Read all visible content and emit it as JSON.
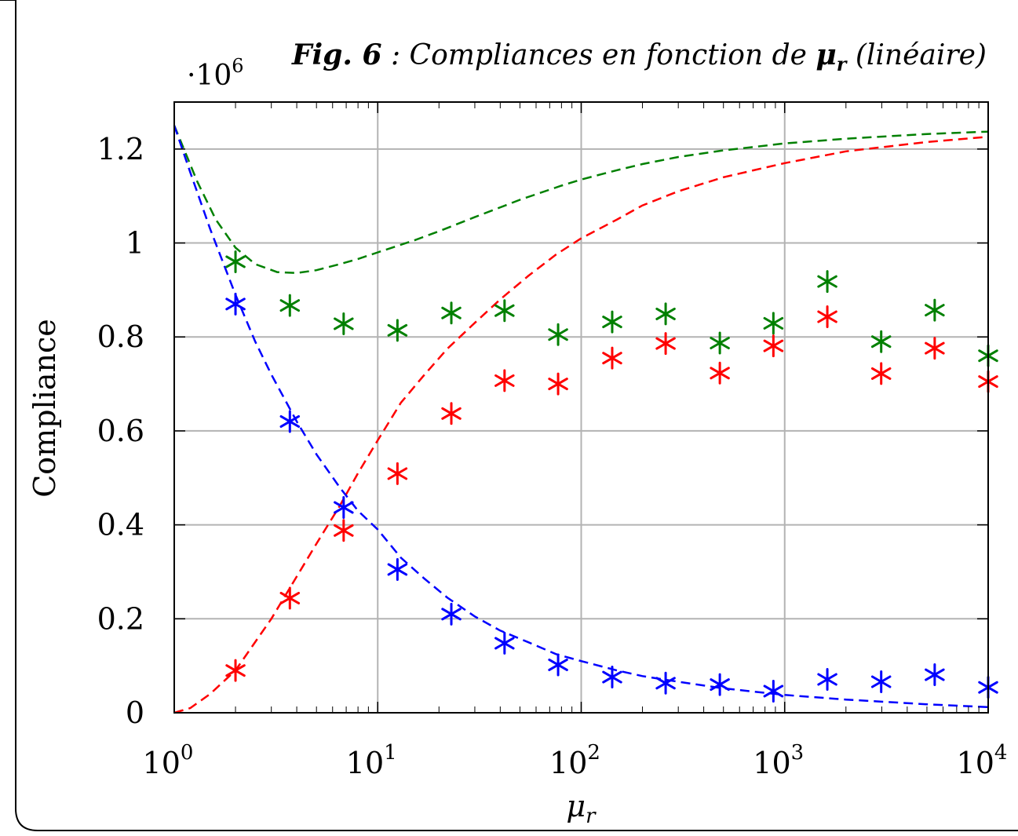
{
  "chart_data": {
    "type": "scatter",
    "title": "Fig. 6 : Compliances en fonction de μr (linéaire)",
    "title_parts": {
      "fig": "Fig. 6",
      "sep": " : ",
      "text": "Compliances en fonction de ",
      "mu": "μ",
      "sub": "r",
      "tail": " (linéaire)"
    },
    "xlabel": "μr",
    "xlabel_parts": {
      "mu": "μ",
      "sub": "r"
    },
    "ylabel": "Compliance",
    "y_multiplier": "·10^6",
    "y_multiplier_parts": {
      "base": "·10",
      "exp": "6"
    },
    "xscale": "log",
    "xlim": [
      1,
      10000
    ],
    "ylim": [
      0,
      1.3
    ],
    "grid": true,
    "x_ticks": [
      {
        "value": 1,
        "base": "10",
        "exp": "0"
      },
      {
        "value": 10,
        "base": "10",
        "exp": "1"
      },
      {
        "value": 100,
        "base": "10",
        "exp": "2"
      },
      {
        "value": 1000,
        "base": "10",
        "exp": "3"
      },
      {
        "value": 10000,
        "base": "10",
        "exp": "4"
      }
    ],
    "y_ticks": [
      {
        "value": 0,
        "label": "0"
      },
      {
        "value": 0.2,
        "label": "0.2"
      },
      {
        "value": 0.4,
        "label": "0.4"
      },
      {
        "value": 0.6,
        "label": "0.6"
      },
      {
        "value": 0.8,
        "label": "0.8"
      },
      {
        "value": 1.0,
        "label": "1"
      },
      {
        "value": 1.2,
        "label": "1.2"
      }
    ],
    "colors": {
      "green": "#008000",
      "red": "#ff0000",
      "blue": "#0000ff"
    },
    "curves": [
      {
        "color": "green",
        "style": "dashed",
        "x": [
          1,
          1.3,
          1.6,
          2,
          2.5,
          3.2,
          4,
          5,
          6.5,
          8,
          10,
          15,
          20,
          30,
          50,
          80,
          100,
          150,
          200,
          300,
          500,
          1000,
          2000,
          5000,
          10000
        ],
        "y": [
          1.25,
          1.13,
          1.05,
          0.99,
          0.955,
          0.938,
          0.936,
          0.942,
          0.955,
          0.966,
          0.98,
          1.005,
          1.025,
          1.055,
          1.092,
          1.122,
          1.135,
          1.155,
          1.168,
          1.183,
          1.197,
          1.212,
          1.222,
          1.232,
          1.237
        ]
      },
      {
        "color": "red",
        "style": "dashed",
        "x": [
          1,
          1.2,
          1.5,
          2,
          3,
          4,
          5,
          6.5,
          8,
          10,
          13,
          17,
          22,
          30,
          40,
          55,
          75,
          100,
          150,
          200,
          300,
          500,
          1000,
          2000,
          5000,
          10000
        ],
        "y": [
          0,
          0.01,
          0.04,
          0.09,
          0.2,
          0.29,
          0.36,
          0.44,
          0.51,
          0.58,
          0.66,
          0.72,
          0.775,
          0.83,
          0.88,
          0.93,
          0.975,
          1.01,
          1.05,
          1.08,
          1.11,
          1.14,
          1.17,
          1.195,
          1.215,
          1.226
        ]
      },
      {
        "color": "blue",
        "style": "dashed",
        "x": [
          1,
          1.2,
          1.5,
          2,
          2.5,
          3,
          4,
          5,
          6.5,
          8,
          10,
          13,
          17,
          22,
          30,
          40,
          55,
          75,
          100,
          150,
          200,
          300,
          500,
          1000,
          2000,
          5000,
          10000
        ],
        "y": [
          1.25,
          1.15,
          1.03,
          0.89,
          0.79,
          0.72,
          0.62,
          0.55,
          0.48,
          0.43,
          0.39,
          0.33,
          0.285,
          0.245,
          0.205,
          0.175,
          0.15,
          0.125,
          0.11,
          0.09,
          0.078,
          0.066,
          0.052,
          0.038,
          0.028,
          0.018,
          0.012
        ]
      }
    ],
    "series": [
      {
        "color": "green",
        "marker": "asterisk",
        "x": [
          2,
          3.7,
          6.8,
          12.5,
          23,
          42,
          77,
          142,
          260,
          480,
          880,
          1620,
          2980,
          5460,
          10000
        ],
        "y": [
          0.96,
          0.867,
          0.828,
          0.814,
          0.851,
          0.856,
          0.805,
          0.832,
          0.849,
          0.787,
          0.829,
          0.918,
          0.79,
          0.857,
          0.76
        ]
      },
      {
        "color": "red",
        "marker": "asterisk",
        "x": [
          2,
          3.7,
          6.8,
          12.5,
          23,
          42,
          77,
          142,
          260,
          480,
          880,
          1620,
          2980,
          5460,
          10000
        ],
        "y": [
          0.09,
          0.244,
          0.388,
          0.509,
          0.637,
          0.707,
          0.7,
          0.755,
          0.786,
          0.723,
          0.781,
          0.843,
          0.722,
          0.776,
          0.705
        ]
      },
      {
        "color": "blue",
        "marker": "asterisk",
        "x": [
          2,
          3.7,
          6.8,
          12.5,
          23,
          42,
          77,
          142,
          260,
          480,
          880,
          1620,
          2980,
          5460,
          10000
        ],
        "y": [
          0.87,
          0.62,
          0.437,
          0.305,
          0.21,
          0.148,
          0.102,
          0.076,
          0.063,
          0.06,
          0.046,
          0.071,
          0.066,
          0.081,
          0.054
        ]
      }
    ]
  }
}
